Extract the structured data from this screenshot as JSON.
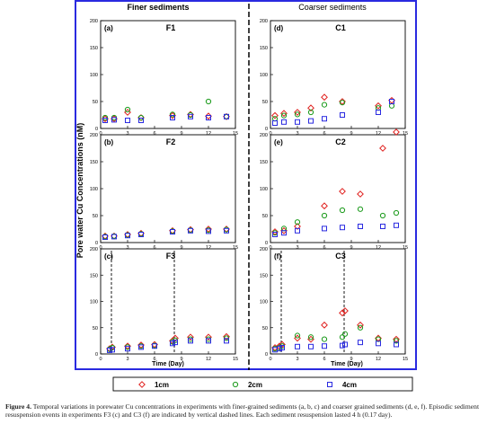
{
  "figure": {
    "ylabel": "Pore water Cu Concentrations (nM)",
    "xlabel": "Time (Day)",
    "left_header": "Finer sediments",
    "right_header": "Coarser sediments",
    "caption_label": "Figure 4.",
    "caption_text": "Temporal variations in porewater Cu concentrations in experiments with finer-grained sediments (a, b, c) and coarser grained sediments (d, e, f). Episodic sediment resuspension events in experiments F3 (c) and C3 (f) are indicated by vertical dashed lines. Each sediment resuspension lasted 4 h (0.17 day).",
    "legend": [
      {
        "label": "1cm",
        "marker": "diamond",
        "color": "#e0201e"
      },
      {
        "label": "2cm",
        "marker": "circle",
        "color": "#1a9a1a"
      },
      {
        "label": "4cm",
        "marker": "square",
        "color": "#2a2ae0"
      }
    ],
    "colors": {
      "frame": "#2a2ae0",
      "divider": "#000000"
    }
  },
  "chart_data": [
    {
      "type": "scatter",
      "panel": "a",
      "title": "F1",
      "xlim": [
        0,
        15
      ],
      "ylim": [
        0,
        200
      ],
      "xticks": [
        0,
        3,
        6,
        9,
        12,
        15
      ],
      "yticks": [
        0,
        50,
        100,
        150,
        200
      ],
      "series": [
        {
          "name": "1cm",
          "x": [
            0.5,
            1.5,
            3,
            4.5,
            8,
            10,
            12,
            14
          ],
          "y": [
            18,
            18,
            30,
            20,
            24,
            26,
            23,
            22
          ]
        },
        {
          "name": "2cm",
          "x": [
            0.5,
            1.5,
            3,
            4.5,
            8,
            10,
            12,
            14
          ],
          "y": [
            20,
            20,
            35,
            20,
            26,
            25,
            50,
            22
          ]
        },
        {
          "name": "4cm",
          "x": [
            0.5,
            1.5,
            3,
            4.5,
            8,
            10,
            12,
            14
          ],
          "y": [
            15,
            16,
            15,
            15,
            20,
            22,
            20,
            22
          ]
        }
      ]
    },
    {
      "type": "scatter",
      "panel": "b",
      "title": "F2",
      "xlim": [
        0,
        15
      ],
      "ylim": [
        0,
        200
      ],
      "xticks": [
        0,
        3,
        6,
        9,
        12,
        15
      ],
      "yticks": [
        0,
        50,
        100,
        150,
        200
      ],
      "series": [
        {
          "name": "1cm",
          "x": [
            0.5,
            1.5,
            3,
            4.5,
            8,
            10,
            12,
            14
          ],
          "y": [
            12,
            12,
            15,
            17,
            22,
            24,
            25,
            25
          ]
        },
        {
          "name": "2cm",
          "x": [
            0.5,
            1.5,
            3,
            4.5,
            8,
            10,
            12,
            14
          ],
          "y": [
            11,
            12,
            14,
            16,
            21,
            23,
            23,
            24
          ]
        },
        {
          "name": "4cm",
          "x": [
            0.5,
            1.5,
            3,
            4.5,
            8,
            10,
            12,
            14
          ],
          "y": [
            10,
            11,
            13,
            15,
            20,
            22,
            21,
            22
          ]
        }
      ]
    },
    {
      "type": "scatter",
      "panel": "c",
      "title": "F3",
      "xlim": [
        0,
        15
      ],
      "ylim": [
        0,
        200
      ],
      "xticks": [
        0,
        3,
        6,
        9,
        12,
        15
      ],
      "yticks": [
        0,
        50,
        100,
        150,
        200
      ],
      "event_lines": [
        1.2,
        8.2
      ],
      "series": [
        {
          "name": "1cm",
          "x": [
            1,
            1.3,
            3,
            4.5,
            6,
            8,
            8.3,
            10,
            12,
            14
          ],
          "y": [
            10,
            13,
            15,
            17,
            18,
            25,
            30,
            32,
            32,
            33
          ]
        },
        {
          "name": "2cm",
          "x": [
            1,
            1.3,
            3,
            4.5,
            6,
            8,
            8.3,
            10,
            12,
            14
          ],
          "y": [
            9,
            12,
            13,
            15,
            16,
            23,
            26,
            28,
            28,
            30
          ]
        },
        {
          "name": "4cm",
          "x": [
            1,
            1.3,
            3,
            4.5,
            6,
            8,
            8.3,
            10,
            12,
            14
          ],
          "y": [
            7,
            8,
            10,
            13,
            15,
            20,
            22,
            25,
            25,
            25
          ]
        }
      ]
    },
    {
      "type": "scatter",
      "panel": "d",
      "title": "C1",
      "xlim": [
        0,
        15
      ],
      "ylim": [
        0,
        200
      ],
      "xticks": [
        0,
        3,
        6,
        9,
        12,
        15
      ],
      "yticks": [
        0,
        50,
        100,
        150,
        200
      ],
      "series": [
        {
          "name": "1cm",
          "x": [
            0.5,
            1.5,
            3,
            4.5,
            6,
            8,
            12,
            13.5
          ],
          "y": [
            24,
            28,
            30,
            38,
            58,
            50,
            42,
            52
          ]
        },
        {
          "name": "2cm",
          "x": [
            0.5,
            1.5,
            3,
            4.5,
            6,
            8,
            12,
            13.5
          ],
          "y": [
            18,
            24,
            26,
            30,
            44,
            48,
            38,
            42
          ]
        },
        {
          "name": "4cm",
          "x": [
            0.5,
            1.5,
            3,
            4.5,
            6,
            8,
            12,
            13.5
          ],
          "y": [
            10,
            12,
            12,
            14,
            18,
            25,
            30,
            50
          ]
        }
      ]
    },
    {
      "type": "scatter",
      "panel": "e",
      "title": "C2",
      "xlim": [
        0,
        15
      ],
      "ylim": [
        0,
        200
      ],
      "xticks": [
        0,
        3,
        6,
        9,
        12,
        15
      ],
      "yticks": [
        0,
        50,
        100,
        150,
        200
      ],
      "series": [
        {
          "name": "1cm",
          "x": [
            0.5,
            1.5,
            3,
            6,
            8,
            10,
            12.5,
            14
          ],
          "y": [
            20,
            22,
            30,
            68,
            95,
            90,
            175,
            205
          ]
        },
        {
          "name": "2cm",
          "x": [
            0.5,
            1.5,
            3,
            6,
            8,
            10,
            12.5,
            14
          ],
          "y": [
            18,
            26,
            38,
            50,
            60,
            62,
            50,
            55
          ]
        },
        {
          "name": "4cm",
          "x": [
            0.5,
            1.5,
            3,
            6,
            8,
            10,
            12.5,
            14
          ],
          "y": [
            15,
            18,
            22,
            26,
            28,
            30,
            30,
            32
          ]
        }
      ]
    },
    {
      "type": "scatter",
      "panel": "f",
      "title": "C3",
      "xlim": [
        0,
        15
      ],
      "ylim": [
        0,
        200
      ],
      "xticks": [
        0,
        3,
        6,
        9,
        12,
        15
      ],
      "yticks": [
        0,
        50,
        100,
        150,
        200
      ],
      "event_lines": [
        1.2,
        8.2
      ],
      "series": [
        {
          "name": "1cm",
          "x": [
            0.5,
            1,
            1.3,
            3,
            4.5,
            6,
            8,
            8.3,
            10,
            12,
            14
          ],
          "y": [
            12,
            15,
            18,
            30,
            28,
            55,
            78,
            82,
            55,
            30,
            28
          ]
        },
        {
          "name": "2cm",
          "x": [
            0.5,
            1,
            1.3,
            3,
            4.5,
            6,
            8,
            8.3,
            10,
            12,
            14
          ],
          "y": [
            10,
            12,
            15,
            35,
            32,
            28,
            32,
            38,
            50,
            28,
            25
          ]
        },
        {
          "name": "4cm",
          "x": [
            0.5,
            1,
            1.3,
            3,
            4.5,
            6,
            8,
            8.3,
            10,
            12,
            14
          ],
          "y": [
            8,
            10,
            12,
            14,
            14,
            15,
            16,
            18,
            22,
            20,
            18
          ]
        }
      ]
    }
  ]
}
